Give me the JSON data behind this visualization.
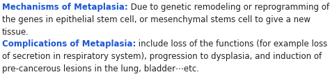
{
  "bold_blue_1": "Mechanisms of Metaplasia:",
  "normal_1": " Due to genetic remodeling or reprogramming of",
  "line2": "the genes in epithelial stem cell, or mesenchymal stems cell to give a new",
  "line3": "tissue.",
  "bold_blue_2": "Complications of Metaplasia:",
  "normal_4": " include loss of the functions (for example loss",
  "line5": "of secretion in respiratory system), progression to dysplasia, and induction of",
  "line6": "pre-cancerous lesions in the lung, bladder⋯etc.",
  "bold_color": "#1a55d4",
  "normal_color": "#231f20",
  "bg_color": "#ffffff",
  "font_size": 8.5,
  "figwidth": 4.74,
  "figheight": 1.15,
  "dpi": 100
}
